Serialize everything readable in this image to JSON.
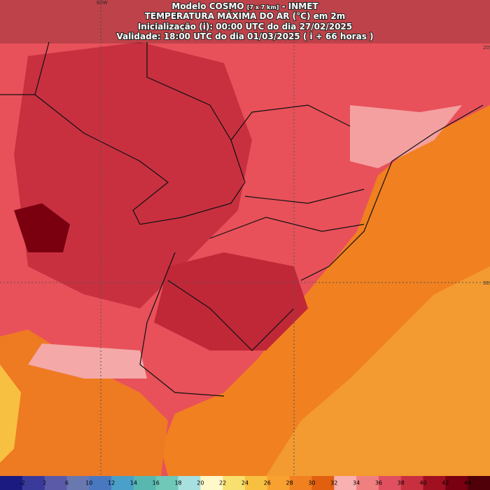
{
  "header": {
    "model": "Modelo COSMO",
    "resolution": "[7 x 7 km]",
    "source": "- INMET",
    "title": "TEMPERATURA MÁXIMA DO AR (°C) em 2m",
    "init": "Inicialização (i): 00:00 UTC do dia 27/02/2025",
    "valid": "Validade: 18:00 UTC do dia 01/03/2025 ( i + 66 horas )"
  },
  "grid_labels": {
    "lon": "60W",
    "lat1": "20S",
    "lat2": "30S"
  },
  "legend": {
    "labels": [
      -2,
      2,
      6,
      10,
      12,
      14,
      16,
      18,
      20,
      22,
      24,
      26,
      28,
      30,
      32,
      34,
      36,
      38,
      40,
      42,
      44
    ],
    "colors": [
      "#1a1a80",
      "#3a3a9a",
      "#5a5aa8",
      "#6a78b0",
      "#4a78c0",
      "#4aa0c8",
      "#58b8b0",
      "#70c8b8",
      "#a8e0e0",
      "#fff8c8",
      "#f8e070",
      "#f8c040",
      "#f8a030",
      "#f08020",
      "#e06010",
      "#f8b0b0",
      "#f08080",
      "#e05060",
      "#c83040",
      "#a01020",
      "#780010",
      "#500008"
    ]
  }
}
